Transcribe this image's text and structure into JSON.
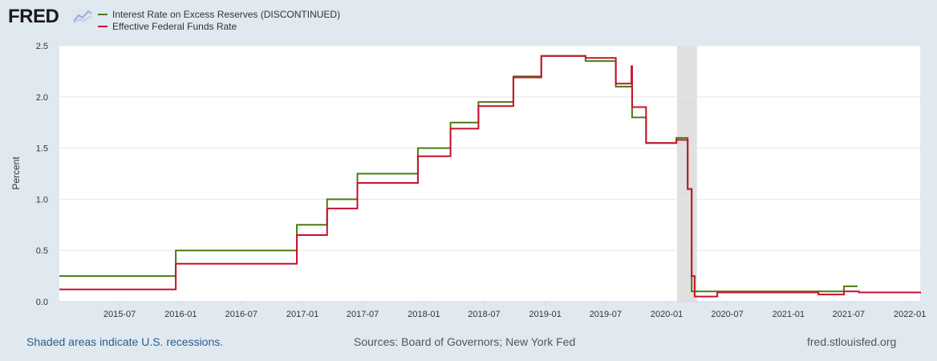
{
  "header": {
    "logo_text": "FRED",
    "logo_icon": "trend-line-icon"
  },
  "legend": [
    {
      "label": "Interest Rate on Excess Reserves (DISCONTINUED)",
      "color": "#4b7d0f"
    },
    {
      "label": "Effective Federal Funds Rate",
      "color": "#c8102e"
    }
  ],
  "footer": {
    "recession_note": "Shaded areas indicate U.S. recessions.",
    "sources": "Sources: Board of Governors; New York Fed",
    "site": "fred.stlouisfed.org"
  },
  "chart_data": {
    "type": "line",
    "title": "",
    "xlabel": "",
    "ylabel": "Percent",
    "xlim": [
      "2015-01-01",
      "2022-02-01"
    ],
    "ylim": [
      0,
      2.5
    ],
    "y_ticks": [
      "0.0",
      "0.5",
      "1.0",
      "1.5",
      "2.0",
      "2.5"
    ],
    "x_ticks": [
      "2015-07",
      "2016-01",
      "2016-07",
      "2017-01",
      "2017-07",
      "2018-01",
      "2018-07",
      "2019-01",
      "2019-07",
      "2020-01",
      "2020-07",
      "2021-01",
      "2021-07",
      "2022-01"
    ],
    "grid": "horizontal",
    "recession": {
      "start": "2020-02-01",
      "end": "2020-04-01",
      "color": "#e0e0e0"
    },
    "series": [
      {
        "name": "Interest Rate on Excess Reserves (DISCONTINUED)",
        "color": "#4b7d0f",
        "step": true,
        "points": [
          [
            "2015-01-01",
            0.25
          ],
          [
            "2015-12-17",
            0.5
          ],
          [
            "2016-12-15",
            0.75
          ],
          [
            "2017-03-16",
            1.0
          ],
          [
            "2017-06-15",
            1.25
          ],
          [
            "2017-12-14",
            1.5
          ],
          [
            "2018-03-22",
            1.75
          ],
          [
            "2018-06-14",
            1.95
          ],
          [
            "2018-09-27",
            2.2
          ],
          [
            "2018-12-20",
            2.4
          ],
          [
            "2019-05-02",
            2.35
          ],
          [
            "2019-08-01",
            2.1
          ],
          [
            "2019-09-19",
            1.8
          ],
          [
            "2019-10-31",
            1.55
          ],
          [
            "2020-01-30",
            1.6
          ],
          [
            "2020-03-04",
            1.1
          ],
          [
            "2020-03-16",
            0.1
          ],
          [
            "2021-06-17",
            0.15
          ],
          [
            "2021-07-28",
            0.15
          ]
        ]
      },
      {
        "name": "Effective Federal Funds Rate",
        "color": "#c8102e",
        "step": true,
        "points": [
          [
            "2015-01-01",
            0.12
          ],
          [
            "2015-12-17",
            0.37
          ],
          [
            "2016-12-15",
            0.65
          ],
          [
            "2017-03-16",
            0.91
          ],
          [
            "2017-06-15",
            1.16
          ],
          [
            "2017-12-14",
            1.42
          ],
          [
            "2018-03-22",
            1.69
          ],
          [
            "2018-06-14",
            1.91
          ],
          [
            "2018-09-27",
            2.19
          ],
          [
            "2018-12-20",
            2.4
          ],
          [
            "2019-05-02",
            2.38
          ],
          [
            "2019-08-01",
            2.13
          ],
          [
            "2019-09-17",
            2.3
          ],
          [
            "2019-09-19",
            1.9
          ],
          [
            "2019-10-31",
            1.55
          ],
          [
            "2020-01-30",
            1.58
          ],
          [
            "2020-03-04",
            1.1
          ],
          [
            "2020-03-16",
            0.25
          ],
          [
            "2020-03-25",
            0.05
          ],
          [
            "2020-06-01",
            0.09
          ],
          [
            "2021-01-01",
            0.09
          ],
          [
            "2021-04-01",
            0.07
          ],
          [
            "2021-06-17",
            0.1
          ],
          [
            "2021-08-01",
            0.09
          ],
          [
            "2022-02-01",
            0.08
          ]
        ]
      }
    ]
  }
}
